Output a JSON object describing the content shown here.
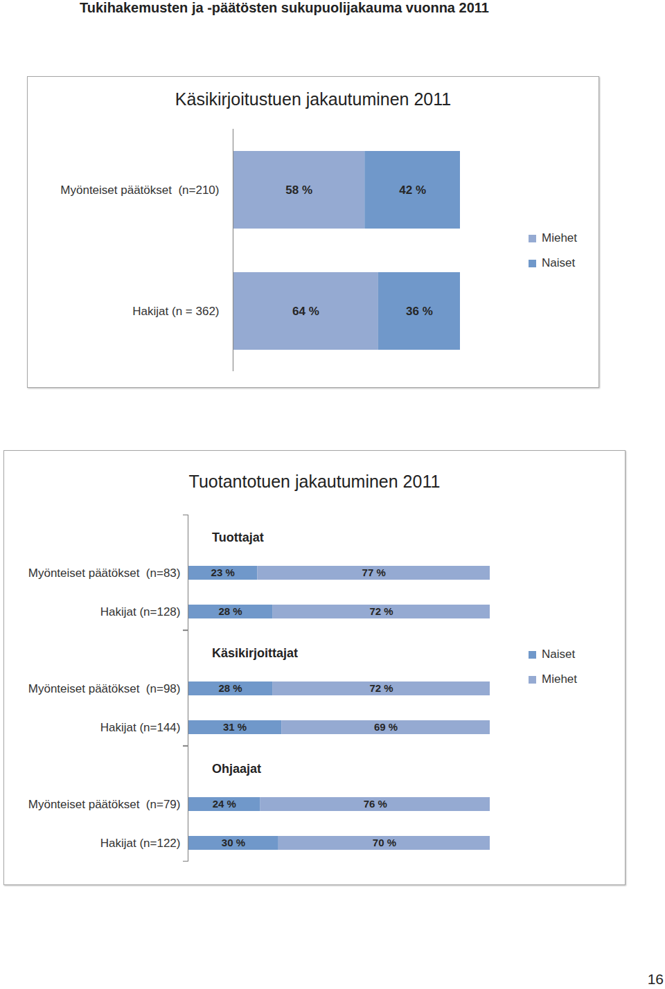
{
  "page_title": "Tukihakemusten ja -päätösten sukupuolijakauma vuonna 2011",
  "page_number": "16",
  "chart_data": [
    {
      "type": "bar",
      "title": "Käsikirjoitustuen jakautuminen 2011",
      "orientation": "horizontal",
      "stacked": true,
      "data_labels": true,
      "tick_labels": "y",
      "legend": "right",
      "xlim": [
        0,
        100
      ],
      "categories": [
        "Myönteiset päätökset  (n=210)",
        "Hakijat (n = 362)"
      ],
      "series": [
        {
          "name": "Miehet",
          "color": "#95aad2",
          "values": [
            58,
            64
          ],
          "value_labels": [
            "58 %",
            "64 %"
          ]
        },
        {
          "name": "Naiset",
          "color": "#7098ca",
          "values": [
            42,
            36
          ],
          "value_labels": [
            "42 %",
            "36 %"
          ]
        }
      ]
    },
    {
      "type": "bar",
      "title": "Tuotantotuen jakautuminen 2011",
      "orientation": "horizontal",
      "stacked": true,
      "data_labels": true,
      "tick_labels": "y",
      "legend": "right",
      "xlim": [
        0,
        100
      ],
      "panels": [
        {
          "subtitle": "Tuottajat",
          "categories": [
            "Myönteiset päätökset  (n=83)",
            "Hakijat (n=128)"
          ],
          "series": [
            {
              "name": "Naiset",
              "color": "#7098ca",
              "values": [
                23,
                28
              ],
              "value_labels": [
                "23 %",
                "28 %"
              ]
            },
            {
              "name": "Miehet",
              "color": "#95aad2",
              "values": [
                77,
                72
              ],
              "value_labels": [
                "77 %",
                "72 %"
              ]
            }
          ]
        },
        {
          "subtitle": "Käsikirjoittajat",
          "categories": [
            "Myönteiset päätökset  (n=98)",
            "Hakijat (n=144)"
          ],
          "series": [
            {
              "name": "Naiset",
              "color": "#7098ca",
              "values": [
                28,
                31
              ],
              "value_labels": [
                "28 %",
                "31 %"
              ]
            },
            {
              "name": "Miehet",
              "color": "#95aad2",
              "values": [
                72,
                69
              ],
              "value_labels": [
                "72 %",
                "69 %"
              ]
            }
          ]
        },
        {
          "subtitle": "Ohjaajat",
          "categories": [
            "Myönteiset päätökset  (n=79)",
            "Hakijat (n=122)"
          ],
          "series": [
            {
              "name": "Naiset",
              "color": "#7098ca",
              "values": [
                24,
                30
              ],
              "value_labels": [
                "24 %",
                "30 %"
              ]
            },
            {
              "name": "Miehet",
              "color": "#95aad2",
              "values": [
                76,
                70
              ],
              "value_labels": [
                "76 %",
                "70 %"
              ]
            }
          ]
        }
      ]
    }
  ]
}
